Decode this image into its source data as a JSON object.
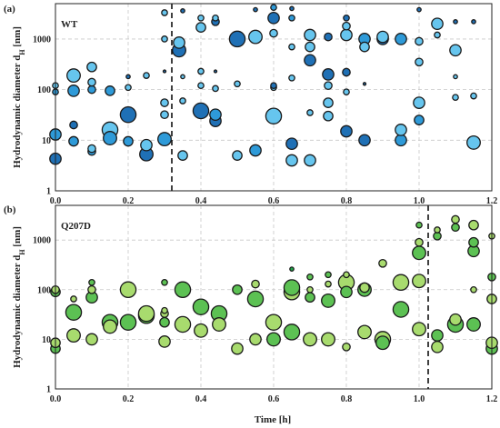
{
  "figure": {
    "xlabel": "Time [h]"
  },
  "chart_data": [
    {
      "type": "scatter",
      "panel_label": "(a)",
      "series_label": "WT",
      "ylabel_main": "Hydrodynamic diameter d",
      "ylabel_sub": "H",
      "ylabel_unit": " [nm]",
      "xlim": [
        0,
        1.2
      ],
      "ylim": [
        1,
        5000
      ],
      "y_scale": "log",
      "x_ticks": [
        "0.0",
        "0.2",
        "0.4",
        "0.6",
        "0.8",
        "1.0",
        "1.2"
      ],
      "y_ticks": [
        "1",
        "10",
        "100",
        "1000"
      ],
      "grid": true,
      "marker_colors": [
        "#1F70B5",
        "#2E9AD8",
        "#66C5EE"
      ],
      "threshold_x": 0.32,
      "points": [
        {
          "x": 0.0,
          "y": 4.3,
          "s": 6,
          "c": 0
        },
        {
          "x": 0.0,
          "y": 13,
          "s": 6,
          "c": 1
        },
        {
          "x": 0.0,
          "y": 90,
          "s": 3,
          "c": 1
        },
        {
          "x": 0.0,
          "y": 120,
          "s": 3,
          "c": 2
        },
        {
          "x": 0.05,
          "y": 9.5,
          "s": 5,
          "c": 1
        },
        {
          "x": 0.05,
          "y": 20,
          "s": 4,
          "c": 0
        },
        {
          "x": 0.05,
          "y": 95,
          "s": 6,
          "c": 1
        },
        {
          "x": 0.05,
          "y": 190,
          "s": 7,
          "c": 2
        },
        {
          "x": 0.1,
          "y": 6,
          "s": 4,
          "c": 1
        },
        {
          "x": 0.1,
          "y": 6.8,
          "s": 4,
          "c": 2
        },
        {
          "x": 0.1,
          "y": 100,
          "s": 4,
          "c": 1
        },
        {
          "x": 0.1,
          "y": 140,
          "s": 4,
          "c": 2
        },
        {
          "x": 0.1,
          "y": 280,
          "s": 5,
          "c": 2
        },
        {
          "x": 0.15,
          "y": 11,
          "s": 7,
          "c": 1
        },
        {
          "x": 0.15,
          "y": 16,
          "s": 8,
          "c": 2
        },
        {
          "x": 0.15,
          "y": 95,
          "s": 5,
          "c": 1
        },
        {
          "x": 0.2,
          "y": 9.5,
          "s": 5,
          "c": 1
        },
        {
          "x": 0.2,
          "y": 32,
          "s": 8,
          "c": 0
        },
        {
          "x": 0.2,
          "y": 110,
          "s": 3,
          "c": 2
        },
        {
          "x": 0.2,
          "y": 180,
          "s": 2,
          "c": 0
        },
        {
          "x": 0.25,
          "y": 5.3,
          "s": 7,
          "c": 0
        },
        {
          "x": 0.25,
          "y": 8,
          "s": 6,
          "c": 2
        },
        {
          "x": 0.25,
          "y": 190,
          "s": 3,
          "c": 2
        },
        {
          "x": 0.3,
          "y": 10.5,
          "s": 7,
          "c": 1
        },
        {
          "x": 0.3,
          "y": 32,
          "s": 4,
          "c": 2
        },
        {
          "x": 0.3,
          "y": 55,
          "s": 4,
          "c": 2
        },
        {
          "x": 0.3,
          "y": 230,
          "s": 1,
          "c": 0
        },
        {
          "x": 0.3,
          "y": 1000,
          "s": 3,
          "c": 2
        },
        {
          "x": 0.3,
          "y": 3300,
          "s": 3,
          "c": 2
        },
        {
          "x": 0.34,
          "y": 600,
          "s": 7,
          "c": 0
        },
        {
          "x": 0.34,
          "y": 850,
          "s": 6,
          "c": 2
        },
        {
          "x": 0.35,
          "y": 5,
          "s": 5,
          "c": 2
        },
        {
          "x": 0.35,
          "y": 60,
          "s": 3,
          "c": 2
        },
        {
          "x": 0.35,
          "y": 180,
          "s": 2,
          "c": 2
        },
        {
          "x": 0.35,
          "y": 3600,
          "s": 2,
          "c": 0
        },
        {
          "x": 0.4,
          "y": 38,
          "s": 8,
          "c": 0
        },
        {
          "x": 0.4,
          "y": 120,
          "s": 3,
          "c": 2
        },
        {
          "x": 0.4,
          "y": 230,
          "s": 3,
          "c": 2
        },
        {
          "x": 0.4,
          "y": 1700,
          "s": 5,
          "c": 2
        },
        {
          "x": 0.4,
          "y": 2600,
          "s": 3,
          "c": 2
        },
        {
          "x": 0.44,
          "y": 24,
          "s": 6,
          "c": 0
        },
        {
          "x": 0.44,
          "y": 32,
          "s": 6,
          "c": 1
        },
        {
          "x": 0.44,
          "y": 105,
          "s": 3,
          "c": 2
        },
        {
          "x": 0.44,
          "y": 230,
          "s": 1,
          "c": 0
        },
        {
          "x": 0.44,
          "y": 2200,
          "s": 4,
          "c": 0
        },
        {
          "x": 0.44,
          "y": 2600,
          "s": 3,
          "c": 2
        },
        {
          "x": 0.5,
          "y": 5,
          "s": 5,
          "c": 2
        },
        {
          "x": 0.5,
          "y": 130,
          "s": 3,
          "c": 2
        },
        {
          "x": 0.5,
          "y": 1000,
          "s": 8,
          "c": 0
        },
        {
          "x": 0.55,
          "y": 6.3,
          "s": 6,
          "c": 1
        },
        {
          "x": 0.55,
          "y": 1100,
          "s": 7,
          "c": 2
        },
        {
          "x": 0.55,
          "y": 3800,
          "s": 2,
          "c": 0
        },
        {
          "x": 0.6,
          "y": 30,
          "s": 8,
          "c": 2
        },
        {
          "x": 0.6,
          "y": 110,
          "s": 3,
          "c": 2
        },
        {
          "x": 0.6,
          "y": 120,
          "s": 3,
          "c": 0
        },
        {
          "x": 0.6,
          "y": 1300,
          "s": 4,
          "c": 2
        },
        {
          "x": 0.6,
          "y": 2600,
          "s": 6,
          "c": 0
        },
        {
          "x": 0.6,
          "y": 4200,
          "s": 3,
          "c": 1
        },
        {
          "x": 0.65,
          "y": 4,
          "s": 6,
          "c": 2
        },
        {
          "x": 0.65,
          "y": 8.5,
          "s": 6,
          "c": 0
        },
        {
          "x": 0.65,
          "y": 170,
          "s": 3,
          "c": 2
        },
        {
          "x": 0.65,
          "y": 700,
          "s": 3,
          "c": 2
        },
        {
          "x": 0.65,
          "y": 2600,
          "s": 3,
          "c": 1
        },
        {
          "x": 0.65,
          "y": 4000,
          "s": 2,
          "c": 0
        },
        {
          "x": 0.7,
          "y": 4,
          "s": 6,
          "c": 2
        },
        {
          "x": 0.7,
          "y": 35,
          "s": 3,
          "c": 2
        },
        {
          "x": 0.7,
          "y": 380,
          "s": 6,
          "c": 0
        },
        {
          "x": 0.7,
          "y": 700,
          "s": 5,
          "c": 2
        },
        {
          "x": 0.7,
          "y": 1200,
          "s": 6,
          "c": 2
        },
        {
          "x": 0.75,
          "y": 30,
          "s": 5,
          "c": 2
        },
        {
          "x": 0.75,
          "y": 55,
          "s": 5,
          "c": 2
        },
        {
          "x": 0.75,
          "y": 120,
          "s": 4,
          "c": 2
        },
        {
          "x": 0.75,
          "y": 200,
          "s": 6,
          "c": 0
        },
        {
          "x": 0.75,
          "y": 1100,
          "s": 4,
          "c": 0
        },
        {
          "x": 0.8,
          "y": 15,
          "s": 6,
          "c": 0
        },
        {
          "x": 0.8,
          "y": 90,
          "s": 3,
          "c": 2
        },
        {
          "x": 0.8,
          "y": 220,
          "s": 4,
          "c": 0
        },
        {
          "x": 0.8,
          "y": 1200,
          "s": 6,
          "c": 2
        },
        {
          "x": 0.8,
          "y": 1800,
          "s": 4,
          "c": 2
        },
        {
          "x": 0.8,
          "y": 2600,
          "s": 3,
          "c": 0
        },
        {
          "x": 0.85,
          "y": 10,
          "s": 6,
          "c": 0
        },
        {
          "x": 0.85,
          "y": 130,
          "s": 1,
          "c": 0
        },
        {
          "x": 0.85,
          "y": 700,
          "s": 5,
          "c": 2
        },
        {
          "x": 0.85,
          "y": 1000,
          "s": 6,
          "c": 1
        },
        {
          "x": 0.9,
          "y": 1000,
          "s": 6,
          "c": 0
        },
        {
          "x": 0.9,
          "y": 1100,
          "s": 6,
          "c": 2
        },
        {
          "x": 0.95,
          "y": 10,
          "s": 6,
          "c": 1
        },
        {
          "x": 0.95,
          "y": 16,
          "s": 6,
          "c": 2
        },
        {
          "x": 0.95,
          "y": 1000,
          "s": 6,
          "c": 1
        },
        {
          "x": 1.0,
          "y": 25,
          "s": 5,
          "c": 1
        },
        {
          "x": 1.0,
          "y": 55,
          "s": 6,
          "c": 2
        },
        {
          "x": 1.0,
          "y": 350,
          "s": 4,
          "c": 2
        },
        {
          "x": 1.0,
          "y": 900,
          "s": 4,
          "c": 2
        },
        {
          "x": 1.0,
          "y": 3800,
          "s": 2,
          "c": 0
        },
        {
          "x": 1.05,
          "y": 1200,
          "s": 3,
          "c": 2
        },
        {
          "x": 1.05,
          "y": 2000,
          "s": 6,
          "c": 2
        },
        {
          "x": 1.1,
          "y": 70,
          "s": 3,
          "c": 2
        },
        {
          "x": 1.1,
          "y": 180,
          "s": 2,
          "c": 2
        },
        {
          "x": 1.1,
          "y": 600,
          "s": 6,
          "c": 2
        },
        {
          "x": 1.1,
          "y": 2200,
          "s": 2,
          "c": 0
        },
        {
          "x": 1.15,
          "y": 9,
          "s": 7,
          "c": 2
        },
        {
          "x": 1.15,
          "y": 75,
          "s": 3,
          "c": 2
        },
        {
          "x": 1.15,
          "y": 2200,
          "s": 2,
          "c": 0
        }
      ]
    },
    {
      "type": "scatter",
      "panel_label": "(b)",
      "series_label": "Q207D",
      "ylabel_main": "Hydrodynamic diameter d",
      "ylabel_sub": "H",
      "ylabel_unit": " [nm]",
      "xlim": [
        0,
        1.2
      ],
      "ylim": [
        1,
        5000
      ],
      "y_scale": "log",
      "x_ticks": [
        "0.0",
        "0.2",
        "0.4",
        "0.6",
        "0.8",
        "1.0",
        "1.2"
      ],
      "y_ticks": [
        "1",
        "10",
        "100",
        "1000"
      ],
      "grid": true,
      "marker_colors": [
        "#1FA64A",
        "#5CC153",
        "#A8DB6E"
      ],
      "threshold_x": 1.025,
      "points": [
        {
          "x": 0.0,
          "y": 6.5,
          "s": 5,
          "c": 1
        },
        {
          "x": 0.0,
          "y": 8.5,
          "s": 5,
          "c": 2
        },
        {
          "x": 0.0,
          "y": 90,
          "s": 5,
          "c": 1
        },
        {
          "x": 0.0,
          "y": 100,
          "s": 4,
          "c": 2
        },
        {
          "x": 0.05,
          "y": 12,
          "s": 7,
          "c": 2
        },
        {
          "x": 0.05,
          "y": 35,
          "s": 8,
          "c": 1
        },
        {
          "x": 0.05,
          "y": 65,
          "s": 3,
          "c": 2
        },
        {
          "x": 0.1,
          "y": 10,
          "s": 6,
          "c": 2
        },
        {
          "x": 0.1,
          "y": 70,
          "s": 6,
          "c": 1
        },
        {
          "x": 0.1,
          "y": 100,
          "s": 4,
          "c": 2
        },
        {
          "x": 0.1,
          "y": 140,
          "s": 3,
          "c": 1
        },
        {
          "x": 0.15,
          "y": 18,
          "s": 7,
          "c": 2
        },
        {
          "x": 0.15,
          "y": 22,
          "s": 8,
          "c": 1
        },
        {
          "x": 0.2,
          "y": 22,
          "s": 8,
          "c": 1
        },
        {
          "x": 0.2,
          "y": 100,
          "s": 8,
          "c": 2
        },
        {
          "x": 0.25,
          "y": 30,
          "s": 8,
          "c": 1
        },
        {
          "x": 0.25,
          "y": 33,
          "s": 8,
          "c": 2
        },
        {
          "x": 0.3,
          "y": 9,
          "s": 6,
          "c": 2
        },
        {
          "x": 0.3,
          "y": 22,
          "s": 5,
          "c": 1
        },
        {
          "x": 0.3,
          "y": 33,
          "s": 4,
          "c": 2
        },
        {
          "x": 0.3,
          "y": 38,
          "s": 3,
          "c": 2
        },
        {
          "x": 0.3,
          "y": 140,
          "s": 3,
          "c": 1
        },
        {
          "x": 0.35,
          "y": 20,
          "s": 8,
          "c": 2
        },
        {
          "x": 0.35,
          "y": 100,
          "s": 8,
          "c": 1
        },
        {
          "x": 0.4,
          "y": 15,
          "s": 7,
          "c": 2
        },
        {
          "x": 0.4,
          "y": 45,
          "s": 8,
          "c": 1
        },
        {
          "x": 0.45,
          "y": 20,
          "s": 7,
          "c": 2
        },
        {
          "x": 0.45,
          "y": 33,
          "s": 8,
          "c": 1
        },
        {
          "x": 0.5,
          "y": 6.5,
          "s": 6,
          "c": 2
        },
        {
          "x": 0.5,
          "y": 100,
          "s": 5,
          "c": 1
        },
        {
          "x": 0.55,
          "y": 10,
          "s": 6,
          "c": 2
        },
        {
          "x": 0.55,
          "y": 65,
          "s": 8,
          "c": 1
        },
        {
          "x": 0.55,
          "y": 130,
          "s": 4,
          "c": 2
        },
        {
          "x": 0.6,
          "y": 10,
          "s": 7,
          "c": 1
        },
        {
          "x": 0.6,
          "y": 22,
          "s": 8,
          "c": 2
        },
        {
          "x": 0.65,
          "y": 14,
          "s": 8,
          "c": 1
        },
        {
          "x": 0.65,
          "y": 90,
          "s": 8,
          "c": 2
        },
        {
          "x": 0.65,
          "y": 110,
          "s": 8,
          "c": 1
        },
        {
          "x": 0.65,
          "y": 260,
          "s": 2,
          "c": 0
        },
        {
          "x": 0.7,
          "y": 10,
          "s": 7,
          "c": 2
        },
        {
          "x": 0.7,
          "y": 70,
          "s": 5,
          "c": 1
        },
        {
          "x": 0.7,
          "y": 100,
          "s": 3,
          "c": 2
        },
        {
          "x": 0.7,
          "y": 180,
          "s": 3,
          "c": 1
        },
        {
          "x": 0.75,
          "y": 10,
          "s": 7,
          "c": 2
        },
        {
          "x": 0.75,
          "y": 60,
          "s": 7,
          "c": 1
        },
        {
          "x": 0.75,
          "y": 130,
          "s": 3,
          "c": 2
        },
        {
          "x": 0.75,
          "y": 200,
          "s": 3,
          "c": 1
        },
        {
          "x": 0.8,
          "y": 7,
          "s": 4,
          "c": 2
        },
        {
          "x": 0.8,
          "y": 90,
          "s": 6,
          "c": 1
        },
        {
          "x": 0.8,
          "y": 140,
          "s": 8,
          "c": 2
        },
        {
          "x": 0.8,
          "y": 200,
          "s": 3,
          "c": 2
        },
        {
          "x": 0.85,
          "y": 14,
          "s": 7,
          "c": 2
        },
        {
          "x": 0.85,
          "y": 100,
          "s": 7,
          "c": 1
        },
        {
          "x": 0.85,
          "y": 110,
          "s": 5,
          "c": 2
        },
        {
          "x": 0.9,
          "y": 8.5,
          "s": 7,
          "c": 1
        },
        {
          "x": 0.9,
          "y": 10,
          "s": 8,
          "c": 2
        },
        {
          "x": 0.9,
          "y": 340,
          "s": 4,
          "c": 2
        },
        {
          "x": 0.95,
          "y": 40,
          "s": 8,
          "c": 1
        },
        {
          "x": 0.95,
          "y": 140,
          "s": 8,
          "c": 2
        },
        {
          "x": 1.0,
          "y": 16,
          "s": 7,
          "c": 2
        },
        {
          "x": 1.0,
          "y": 150,
          "s": 7,
          "c": 2
        },
        {
          "x": 1.0,
          "y": 550,
          "s": 7,
          "c": 1
        },
        {
          "x": 1.0,
          "y": 900,
          "s": 4,
          "c": 2
        },
        {
          "x": 1.0,
          "y": 2000,
          "s": 3,
          "c": 1
        },
        {
          "x": 1.05,
          "y": 7,
          "s": 6,
          "c": 2
        },
        {
          "x": 1.05,
          "y": 12,
          "s": 6,
          "c": 1
        },
        {
          "x": 1.05,
          "y": 1200,
          "s": 4,
          "c": 1
        },
        {
          "x": 1.05,
          "y": 1600,
          "s": 3,
          "c": 2
        },
        {
          "x": 1.1,
          "y": 20,
          "s": 8,
          "c": 1
        },
        {
          "x": 1.1,
          "y": 25,
          "s": 6,
          "c": 2
        },
        {
          "x": 1.1,
          "y": 1800,
          "s": 4,
          "c": 1
        },
        {
          "x": 1.1,
          "y": 2600,
          "s": 4,
          "c": 2
        },
        {
          "x": 1.15,
          "y": 20,
          "s": 7,
          "c": 1
        },
        {
          "x": 1.15,
          "y": 100,
          "s": 3,
          "c": 2
        },
        {
          "x": 1.15,
          "y": 600,
          "s": 6,
          "c": 1
        },
        {
          "x": 1.15,
          "y": 900,
          "s": 5,
          "c": 1
        },
        {
          "x": 1.15,
          "y": 2000,
          "s": 5,
          "c": 2
        },
        {
          "x": 1.2,
          "y": 6.5,
          "s": 6,
          "c": 1
        },
        {
          "x": 1.2,
          "y": 8.5,
          "s": 6,
          "c": 2
        },
        {
          "x": 1.2,
          "y": 65,
          "s": 5,
          "c": 2
        },
        {
          "x": 1.2,
          "y": 180,
          "s": 4,
          "c": 1
        },
        {
          "x": 1.2,
          "y": 1200,
          "s": 3,
          "c": 2
        }
      ]
    }
  ]
}
